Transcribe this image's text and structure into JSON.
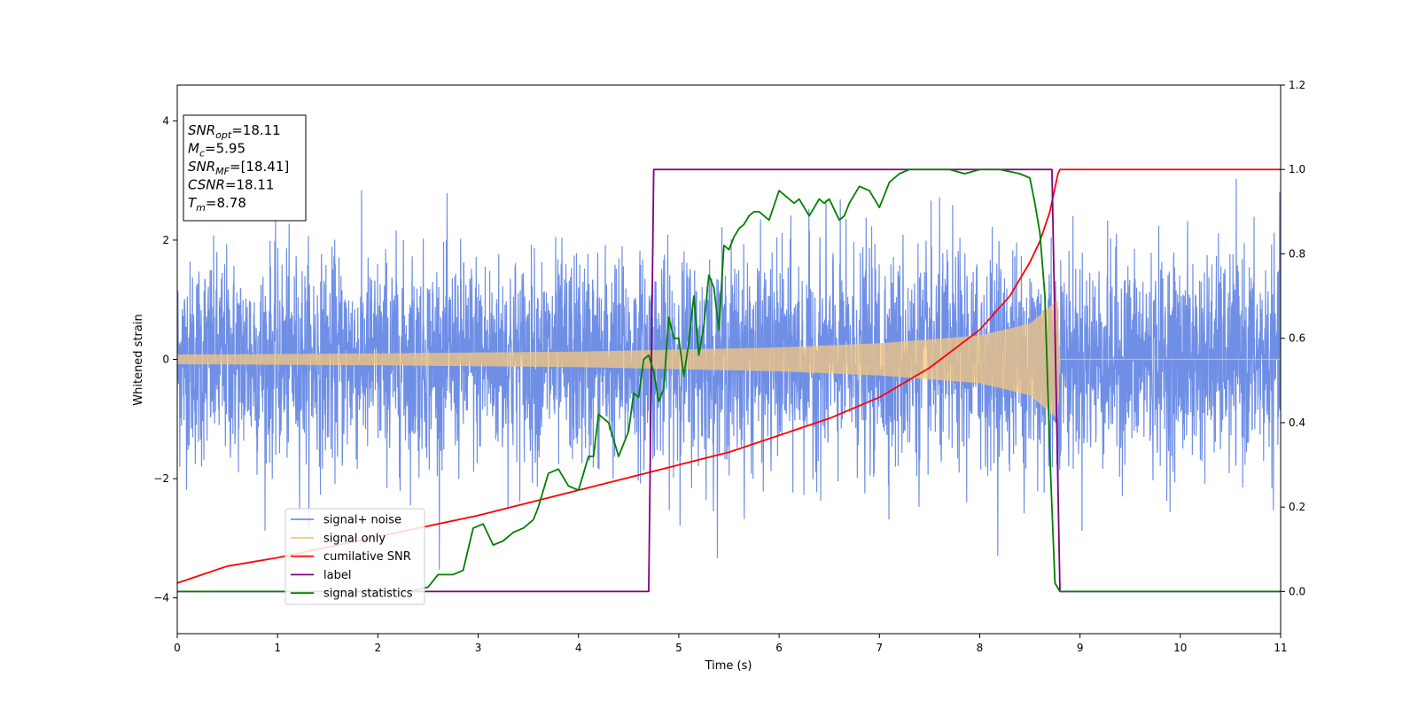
{
  "chart_data": {
    "type": "line",
    "xlabel": "Time (s)",
    "ylabel": "Whitened strain",
    "xlim": [
      0,
      11
    ],
    "ylim": [
      -4.6,
      4.6
    ],
    "y2lim": [
      -0.1,
      1.2
    ],
    "x_ticks": [
      "0",
      "1",
      "2",
      "3",
      "4",
      "5",
      "6",
      "7",
      "8",
      "9",
      "10",
      "11"
    ],
    "y_ticks": [
      "4",
      "2",
      "0",
      "−2",
      "−4"
    ],
    "y2_ticks": [
      "1.2",
      "1.0",
      "0.8",
      "0.6",
      "0.4",
      "0.2",
      "0.0"
    ],
    "grid": false,
    "legend_position": "lower-left",
    "info_box": {
      "lines": [
        {
          "main": "SNR",
          "sub": "opt",
          "value": "=18.11"
        },
        {
          "main": "M",
          "sub": "c",
          "value": "=5.95"
        },
        {
          "main": "SNR",
          "sub": "MF",
          "value": "=[18.41]"
        },
        {
          "main": "CSNR",
          "sub": "",
          "value": "=18.11"
        },
        {
          "main": "T",
          "sub": "m",
          "value": "=8.78"
        }
      ]
    },
    "series": [
      {
        "name": "signal+ noise",
        "axis": "left",
        "color": "#6f8fe6",
        "noise_std": 0.85,
        "signal_envelope": {
          "t": [
            0,
            2,
            4,
            6,
            7,
            8,
            8.5,
            8.78
          ],
          "amp": [
            0.08,
            0.1,
            0.13,
            0.2,
            0.27,
            0.4,
            0.6,
            1.0
          ]
        }
      },
      {
        "name": "signal only",
        "axis": "left",
        "color": "#f5c77e",
        "envelope": {
          "t": [
            0,
            2,
            4,
            6,
            7,
            8,
            8.5,
            8.78,
            8.8,
            11
          ],
          "amp": [
            0.08,
            0.1,
            0.13,
            0.2,
            0.27,
            0.4,
            0.6,
            1.0,
            0.0,
            0.0
          ]
        }
      },
      {
        "name": "cumilative SNR",
        "axis": "right",
        "color": "#ff0000",
        "x": [
          0,
          0.5,
          1,
          2,
          3,
          4,
          4.5,
          5,
          5.5,
          6,
          6.5,
          7,
          7.5,
          8,
          8.3,
          8.5,
          8.6,
          8.7,
          8.78,
          8.8,
          11
        ],
        "y": [
          0.02,
          0.06,
          0.08,
          0.13,
          0.18,
          0.24,
          0.27,
          0.3,
          0.33,
          0.37,
          0.41,
          0.46,
          0.53,
          0.62,
          0.7,
          0.78,
          0.83,
          0.9,
          0.99,
          1.0,
          1.0
        ]
      },
      {
        "name": "label",
        "axis": "right",
        "color": "#800080",
        "x": [
          0,
          4.7,
          4.75,
          8.72,
          8.8,
          11
        ],
        "y": [
          0,
          0,
          1,
          1,
          0,
          0
        ]
      },
      {
        "name": "signal statistics",
        "axis": "right",
        "color": "#008000",
        "x": [
          0,
          0.5,
          1,
          1.5,
          2,
          2.3,
          2.5,
          2.6,
          2.75,
          2.85,
          2.95,
          3.05,
          3.15,
          3.25,
          3.35,
          3.45,
          3.55,
          3.6,
          3.7,
          3.8,
          3.9,
          4.0,
          4.05,
          4.1,
          4.15,
          4.2,
          4.3,
          4.4,
          4.5,
          4.55,
          4.6,
          4.65,
          4.7,
          4.75,
          4.8,
          4.85,
          4.9,
          4.95,
          5.0,
          5.05,
          5.1,
          5.15,
          5.2,
          5.25,
          5.3,
          5.35,
          5.4,
          5.45,
          5.5,
          5.55,
          5.6,
          5.65,
          5.7,
          5.75,
          5.8,
          5.9,
          6.0,
          6.05,
          6.1,
          6.15,
          6.2,
          6.3,
          6.4,
          6.45,
          6.5,
          6.6,
          6.65,
          6.7,
          6.8,
          6.9,
          7.0,
          7.1,
          7.2,
          7.3,
          7.4,
          7.5,
          7.7,
          7.85,
          8.0,
          8.2,
          8.4,
          8.5,
          8.55,
          8.6,
          8.65,
          8.7,
          8.75,
          8.8,
          8.9,
          11
        ],
        "y": [
          0,
          0,
          0,
          0,
          0,
          0,
          0.01,
          0.04,
          0.04,
          0.05,
          0.15,
          0.16,
          0.11,
          0.12,
          0.14,
          0.15,
          0.17,
          0.2,
          0.28,
          0.29,
          0.25,
          0.24,
          0.28,
          0.32,
          0.32,
          0.42,
          0.4,
          0.32,
          0.38,
          0.47,
          0.46,
          0.55,
          0.56,
          0.52,
          0.45,
          0.48,
          0.65,
          0.6,
          0.6,
          0.51,
          0.59,
          0.7,
          0.56,
          0.63,
          0.75,
          0.72,
          0.62,
          0.82,
          0.81,
          0.84,
          0.86,
          0.87,
          0.89,
          0.9,
          0.9,
          0.88,
          0.95,
          0.94,
          0.93,
          0.92,
          0.93,
          0.89,
          0.93,
          0.92,
          0.93,
          0.88,
          0.89,
          0.92,
          0.96,
          0.95,
          0.91,
          0.97,
          0.99,
          1.0,
          1.0,
          1.0,
          1.0,
          0.99,
          1.0,
          1.0,
          0.99,
          0.98,
          0.92,
          0.85,
          0.7,
          0.32,
          0.02,
          0.0,
          0.0,
          0.0
        ]
      }
    ]
  }
}
